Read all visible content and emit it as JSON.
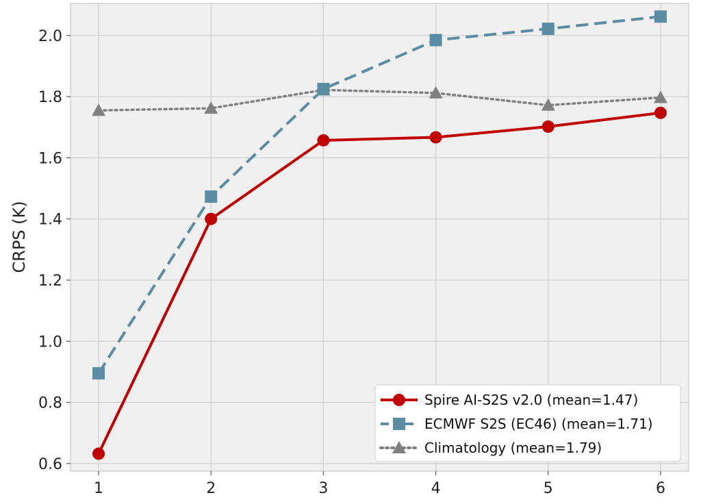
{
  "chart_data": {
    "type": "line",
    "title": "",
    "xlabel": "",
    "ylabel": "CRPS (K)",
    "x": [
      1,
      2,
      3,
      4,
      5,
      6
    ],
    "xlim": [
      0.75,
      6.25
    ],
    "ylim": [
      0.575,
      2.105
    ],
    "xticks": [
      1,
      2,
      3,
      4,
      5,
      6
    ],
    "yticks": [
      0.6,
      0.8,
      1.0,
      1.2,
      1.4,
      1.6,
      1.8,
      2.0
    ],
    "ytick_labels": [
      "0.6",
      "0.8",
      "1.0",
      "1.2",
      "1.4",
      "1.6",
      "1.8",
      "2.0"
    ],
    "grid": true,
    "legend_position": "lower-right",
    "series": [
      {
        "name": "Spire AI-S2S v2.0 (mean=1.47)",
        "values": [
          0.632,
          1.4,
          1.657,
          1.667,
          1.702,
          1.747
        ],
        "color": "#c00000",
        "line_style": "solid",
        "marker": "circle"
      },
      {
        "name": "ECMWF S2S (EC46) (mean=1.71)",
        "values": [
          0.895,
          1.473,
          1.825,
          1.985,
          2.022,
          2.062
        ],
        "color": "#5a8ca3",
        "line_style": "dashed",
        "marker": "square"
      },
      {
        "name": "Climatology (mean=1.79)",
        "values": [
          1.755,
          1.762,
          1.822,
          1.812,
          1.772,
          1.797
        ],
        "color": "#808080",
        "line_style": "dotted",
        "marker": "triangle"
      }
    ]
  }
}
